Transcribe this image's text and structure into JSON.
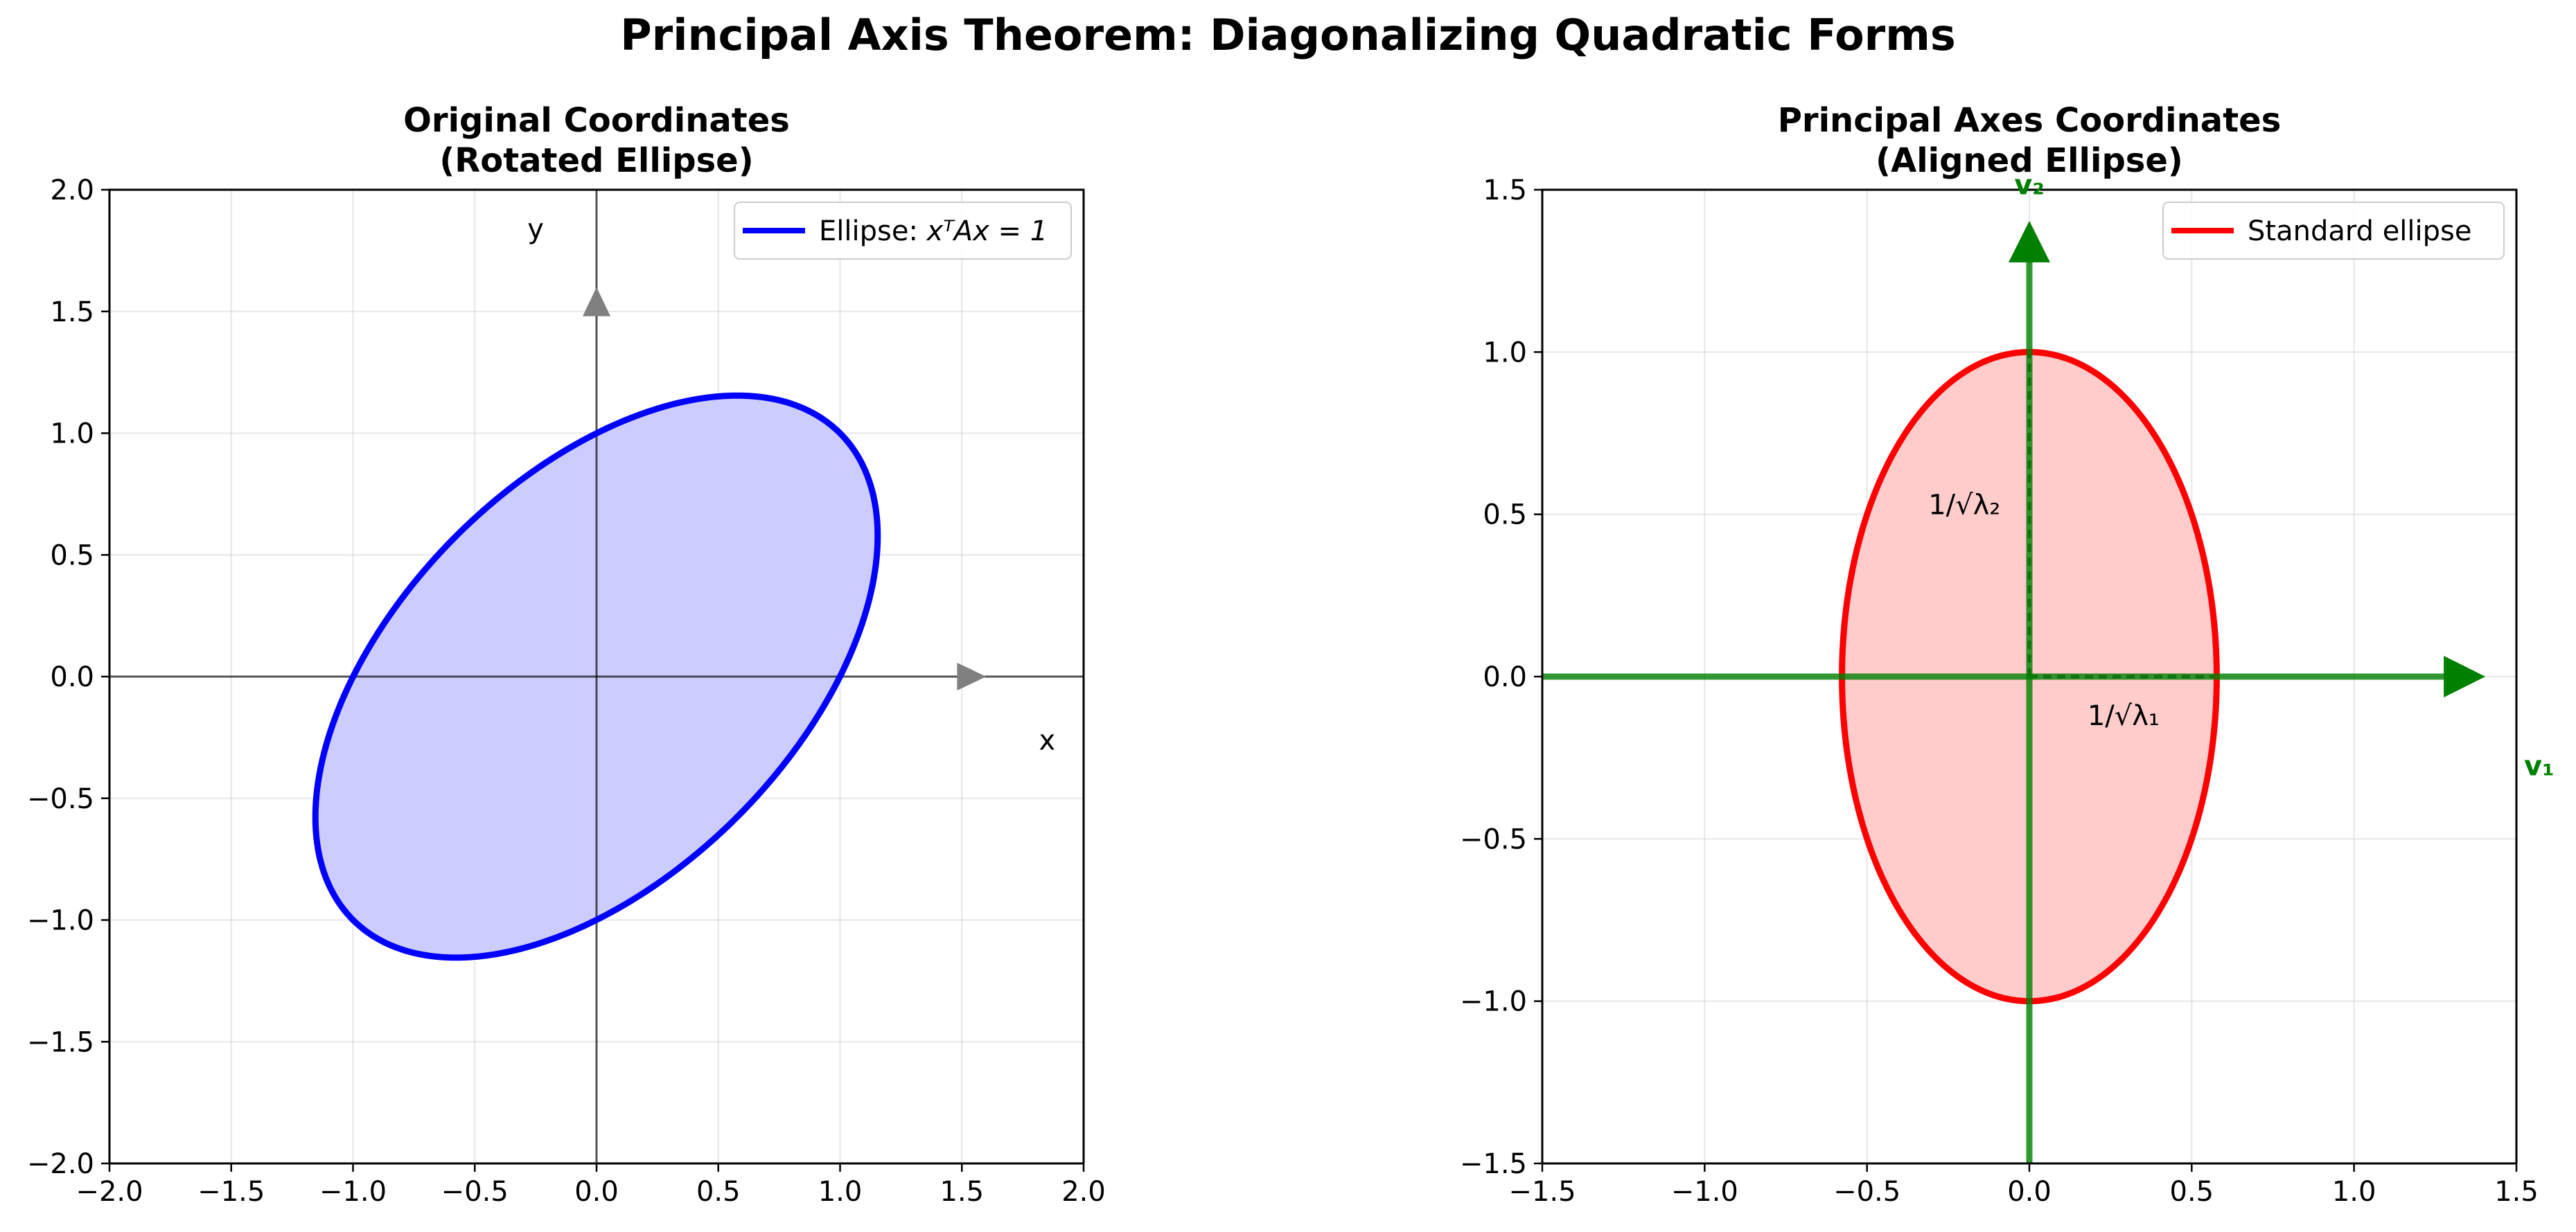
{
  "title": "Principal Axis Theorem: Diagonalizing Quadratic Forms",
  "chart_data": [
    {
      "type": "line",
      "title_line1": "Original Coordinates",
      "title_line2": "(Rotated Ellipse)",
      "xlim": [
        -2.0,
        2.0
      ],
      "ylim": [
        -2.0,
        2.0
      ],
      "xticks": [
        -2.0,
        -1.5,
        -1.0,
        -0.5,
        0.0,
        0.5,
        1.0,
        1.5,
        2.0
      ],
      "yticks": [
        -2.0,
        -1.5,
        -1.0,
        -0.5,
        0.0,
        0.5,
        1.0,
        1.5,
        2.0
      ],
      "xtick_labels": [
        "−2.0",
        "−1.5",
        "−1.0",
        "−0.5",
        "0.0",
        "0.5",
        "1.0",
        "1.5",
        "2.0"
      ],
      "ytick_labels": [
        "−2.0",
        "−1.5",
        "−1.0",
        "−0.5",
        "0.0",
        "0.5",
        "1.0",
        "1.5",
        "2.0"
      ],
      "grid": true,
      "legend_position": "upper right",
      "legend": {
        "prefix": "Ellipse: ",
        "math": "xᵀAx = 1"
      },
      "ellipse": {
        "center": [
          0,
          0
        ],
        "matrix_A": [
          [
            1,
            -0.5
          ],
          [
            -0.5,
            1
          ]
        ],
        "semi_axis_major": 1.414,
        "semi_axis_minor": 0.816,
        "angle_deg": 45,
        "line_color": "#0000ff",
        "fill_color": "#ccccff"
      },
      "axis_arrows": {
        "x_end": [
          1.6,
          0
        ],
        "y_end": [
          0,
          1.6
        ],
        "color": "#808080"
      },
      "annotations": [
        {
          "text": "x",
          "x": 1.85,
          "y": -0.26
        },
        {
          "text": "y",
          "x": -0.25,
          "y": 1.84
        }
      ]
    },
    {
      "type": "line",
      "title_line1": "Principal Axes Coordinates",
      "title_line2": "(Aligned Ellipse)",
      "xlim": [
        -1.5,
        1.5
      ],
      "ylim": [
        -1.5,
        1.5
      ],
      "xticks": [
        -1.5,
        -1.0,
        -0.5,
        0.0,
        0.5,
        1.0,
        1.5
      ],
      "yticks": [
        -1.5,
        -1.0,
        -0.5,
        0.0,
        0.5,
        1.0,
        1.5
      ],
      "xtick_labels": [
        "−1.5",
        "−1.0",
        "−0.5",
        "0.0",
        "0.5",
        "1.0",
        "1.5"
      ],
      "ytick_labels": [
        "−1.5",
        "−1.0",
        "−0.5",
        "0.0",
        "0.5",
        "1.0",
        "1.5"
      ],
      "grid": true,
      "legend_position": "upper right",
      "legend": {
        "label": "Standard ellipse"
      },
      "ellipse": {
        "center": [
          0,
          0
        ],
        "semi_axis_x": 0.577,
        "semi_axis_y": 1.0,
        "line_color": "#ff0000",
        "fill_color": "#ffcccc"
      },
      "eigen_arrows": [
        {
          "label": "v₁",
          "end": [
            1.4,
            0
          ],
          "label_x": 1.57,
          "label_y": -0.27
        },
        {
          "label": "v₂",
          "end": [
            0,
            1.4
          ],
          "label_x": -0.24,
          "label_y": 1.52
        }
      ],
      "eigen_color": "#008000",
      "annotations": [
        {
          "text": "1/√λ₁",
          "x": 0.29,
          "y": -0.12
        },
        {
          "text": "1/√λ₂",
          "x": -0.2,
          "y": 0.53
        }
      ]
    }
  ]
}
